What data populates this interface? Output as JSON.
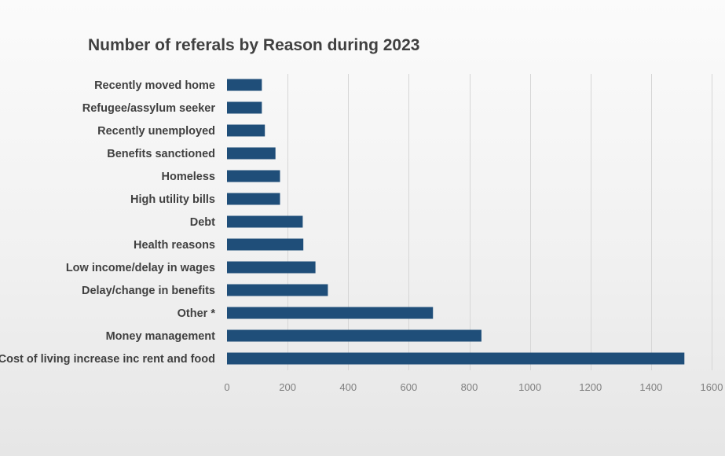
{
  "chart_data": {
    "type": "bar",
    "orientation": "horizontal",
    "title": "Number of referals by Reason during 2023",
    "xlabel": "",
    "ylabel": "",
    "categories": [
      "Recently moved home",
      "Refugee/assylum seeker",
      "Recently unemployed",
      "Benefits sanctioned",
      "Homeless",
      "High utility bills",
      "Debt",
      "Health reasons",
      "Low income/delay in wages",
      "Delay/change in benefits",
      "Other *",
      "Money management",
      "Cost of living increase inc rent and food"
    ],
    "values": [
      115,
      115,
      125,
      160,
      175,
      175,
      250,
      252,
      292,
      333,
      680,
      840,
      1510
    ],
    "xlim": [
      0,
      1600
    ],
    "xticks": [
      0,
      200,
      400,
      600,
      800,
      1000,
      1200,
      1400,
      1600
    ],
    "grid": true,
    "legend": "none",
    "bar_color": "#1f4e79"
  }
}
